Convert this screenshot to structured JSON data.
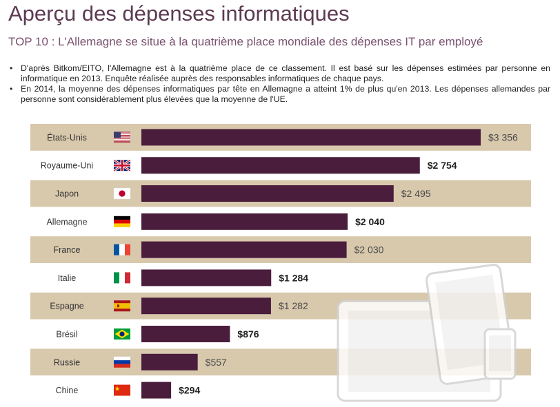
{
  "page": {
    "title": "Aperçu des dépenses informatiques",
    "subtitle": "TOP 10 : L'Allemagne se situe à la quatrième place mondiale des dépenses IT par employé",
    "bullets": [
      "D'après Bitkom/EITO, l'Allemagne est à la quatrième place de ce classement. Il est basé sur les dépenses estimées par personne en informatique en 2013. Enquête réalisée auprès des responsables informatiques de chaque pays.",
      "En 2014, la moyenne des dépenses informatiques par tête en Allemagne a atteint 1% de plus qu'en 2013. Les dépenses allemandes par personne sont considérablement plus élevées que la moyenne de l'UE."
    ]
  },
  "colors": {
    "bar": "#4a1d3c",
    "band": "#d8c8ac",
    "title": "#5c3a52",
    "value_label_default": "#4a4a4a"
  },
  "chart_data": {
    "type": "bar",
    "orientation": "horizontal",
    "categories": [
      "États-Unis",
      "Royaume-Uni",
      "Japon",
      "Allemagne",
      "France",
      "Italie",
      "Espagne",
      "Brésil",
      "Russie",
      "Chine"
    ],
    "values": [
      3356,
      2754,
      2495,
      2040,
      2030,
      1284,
      1282,
      876,
      557,
      294
    ],
    "value_labels": [
      "$3 356",
      "$2 754",
      "$2 495",
      "$2 040",
      "$2 030",
      "$1 284",
      "$1 282",
      "$876",
      "$557",
      "$294"
    ],
    "flags": [
      "us-flag",
      "uk-flag",
      "japan-flag",
      "germany-flag",
      "france-flag",
      "italy-flag",
      "spain-flag",
      "brazil-flag",
      "russia-flag",
      "china-flag"
    ],
    "xlim": [
      0,
      3356
    ],
    "banded_rows": true,
    "grid": false,
    "legend": "none",
    "decoration": "device-illustration"
  }
}
